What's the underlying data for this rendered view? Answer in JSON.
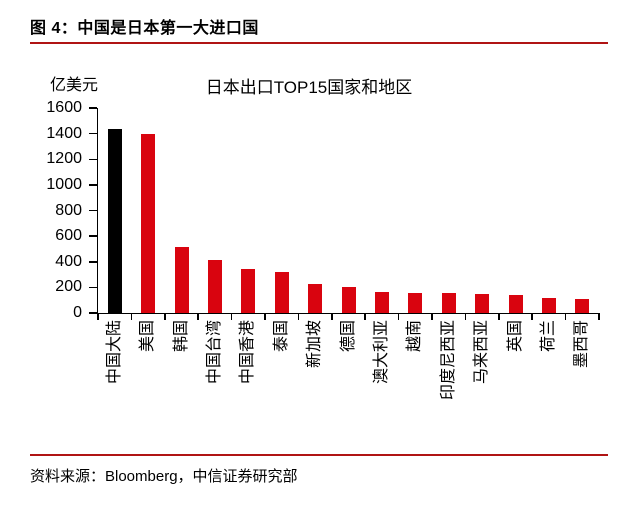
{
  "figure": {
    "title": "图 4：中国是日本第一大进口国",
    "source": "资料来源：Bloomberg，中信证券研究部"
  },
  "chart_data": {
    "type": "bar",
    "title": "日本出口TOP15国家和地区",
    "unit_label": "亿美元",
    "ylabel": "亿美元",
    "xlabel": "",
    "categories": [
      "中国大陆",
      "美国",
      "韩国",
      "中国台湾",
      "中国香港",
      "泰国",
      "新加坡",
      "德国",
      "澳大利亚",
      "越南",
      "印度尼西亚",
      "马来西亚",
      "英国",
      "荷兰",
      "墨西哥"
    ],
    "values": [
      1440,
      1400,
      515,
      410,
      345,
      320,
      230,
      205,
      165,
      160,
      155,
      145,
      140,
      120,
      110
    ],
    "ylim": [
      0,
      1600
    ],
    "yticks": [
      0,
      200,
      400,
      600,
      800,
      1000,
      1200,
      1400,
      1600
    ],
    "grid": "off",
    "legend": "none",
    "bar_color": "#d9040f",
    "highlight_index": 0,
    "highlight_color": "#000000",
    "accent_rule_color": "#b01414"
  }
}
